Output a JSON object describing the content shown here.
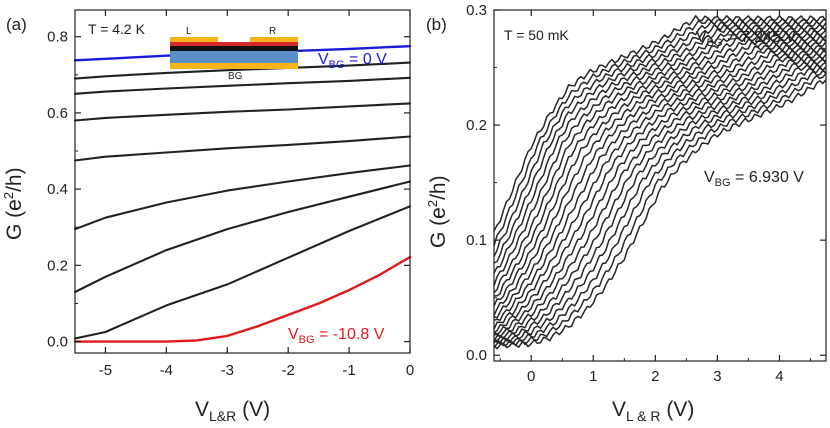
{
  "chart_data": [
    {
      "panel": "(a)",
      "type": "line",
      "xlabel": "V",
      "xlabel_sub": "L&R",
      "xlabel_unit": " (V)",
      "ylabel": "G (e",
      "ylabel_sup": "2",
      "ylabel_unit": "/h)",
      "xlim": [
        -5.5,
        0
      ],
      "ylim": [
        -0.03,
        0.87
      ],
      "xticks": [
        -5,
        -4,
        -3,
        -2,
        -1,
        0
      ],
      "xtick_labels": [
        "-5",
        "-4",
        "-3",
        "-2",
        "-1",
        "0"
      ],
      "yticks": [
        0.0,
        0.2,
        0.4,
        0.6,
        0.8
      ],
      "ytick_labels": [
        "0.0",
        "0.2",
        "0.4",
        "0.6",
        "0.8"
      ],
      "annotation_T": "T = 4.2 K",
      "inset": {
        "left_label": "L",
        "right_label": "R",
        "bottom_label": "BG"
      },
      "label_top": {
        "prefix": "V",
        "sub": "BG",
        "text": " = 0 V",
        "color": "#1a1adc"
      },
      "label_bottom": {
        "prefix": "V",
        "sub": "BG",
        "text": " = -10.8 V",
        "color": "#e11a1a"
      },
      "series": [
        {
          "name": "V_BG = 0 V",
          "color": "#1a1adc",
          "x": [
            -5.5,
            -5.0,
            -4.0,
            -3.0,
            -2.0,
            -1.0,
            0.0
          ],
          "y": [
            0.738,
            0.742,
            0.75,
            0.756,
            0.762,
            0.768,
            0.775
          ]
        },
        {
          "name": "curve 2",
          "color": "#222222",
          "x": [
            -5.5,
            -5.0,
            -4.0,
            -3.0,
            -2.0,
            -1.0,
            0.0
          ],
          "y": [
            0.69,
            0.696,
            0.705,
            0.712,
            0.718,
            0.724,
            0.732
          ]
        },
        {
          "name": "curve 3",
          "color": "#222222",
          "x": [
            -5.5,
            -5.0,
            -4.0,
            -3.0,
            -2.0,
            -1.0,
            0.0
          ],
          "y": [
            0.65,
            0.656,
            0.664,
            0.671,
            0.678,
            0.684,
            0.692
          ]
        },
        {
          "name": "curve 4",
          "color": "#222222",
          "x": [
            -5.5,
            -5.0,
            -4.0,
            -3.0,
            -2.0,
            -1.0,
            0.0
          ],
          "y": [
            0.58,
            0.587,
            0.595,
            0.603,
            0.609,
            0.617,
            0.625
          ]
        },
        {
          "name": "curve 5",
          "color": "#222222",
          "x": [
            -5.5,
            -5.0,
            -4.0,
            -3.0,
            -2.0,
            -1.0,
            0.0
          ],
          "y": [
            0.475,
            0.485,
            0.496,
            0.507,
            0.516,
            0.526,
            0.538
          ]
        },
        {
          "name": "curve 6",
          "color": "#222222",
          "x": [
            -5.5,
            -5.0,
            -4.0,
            -3.0,
            -2.0,
            -1.0,
            0.0
          ],
          "y": [
            0.295,
            0.325,
            0.365,
            0.396,
            0.42,
            0.442,
            0.462
          ]
        },
        {
          "name": "curve 7",
          "color": "#222222",
          "x": [
            -5.5,
            -5.0,
            -4.0,
            -3.0,
            -2.0,
            -1.0,
            0.0
          ],
          "y": [
            0.13,
            0.17,
            0.24,
            0.295,
            0.34,
            0.38,
            0.42
          ]
        },
        {
          "name": "curve 8",
          "color": "#222222",
          "x": [
            -5.5,
            -5.0,
            -4.5,
            -4.0,
            -3.0,
            -2.0,
            -1.0,
            0.0
          ],
          "y": [
            0.008,
            0.025,
            0.06,
            0.095,
            0.15,
            0.22,
            0.29,
            0.355
          ]
        },
        {
          "name": "V_BG = -10.8 V",
          "color": "#e11a1a",
          "x": [
            -5.5,
            -4.0,
            -3.5,
            -3.0,
            -2.5,
            -2.0,
            -1.5,
            -1.0,
            -0.5,
            0.0
          ],
          "y": [
            0.0,
            0.0,
            0.003,
            0.015,
            0.04,
            0.07,
            0.1,
            0.135,
            0.175,
            0.222
          ]
        }
      ]
    },
    {
      "panel": "(b)",
      "type": "line",
      "xlabel": "V",
      "xlabel_sub": "L & R",
      "xlabel_unit": " (V)",
      "ylabel": "G (e",
      "ylabel_sup": "2",
      "ylabel_unit": "/h)",
      "xlim": [
        -0.6,
        4.75
      ],
      "ylim": [
        -0.005,
        0.3
      ],
      "xticks": [
        0,
        1,
        2,
        3,
        4
      ],
      "xtick_labels": [
        "0",
        "1",
        "2",
        "3",
        "4"
      ],
      "yticks": [
        0.0,
        0.1,
        0.2,
        0.3
      ],
      "ytick_labels": [
        "0.0",
        "0.1",
        "0.2",
        "0.3"
      ],
      "annotation_T": "T = 50 mK",
      "label_top": {
        "prefix": "V",
        "sub": "BG",
        "text": " = 7.245 V"
      },
      "label_mid": {
        "prefix": "V",
        "sub": "BG",
        "text": " = 6.930 V"
      },
      "curve_count": 22,
      "curve_offset_start": 0.0,
      "curve_offset_step": 0.1,
      "base_curve": {
        "x": [
          -0.6,
          -0.3,
          0.0,
          0.3,
          0.6,
          0.9,
          1.2,
          1.5,
          1.8,
          2.1,
          2.4,
          2.7,
          3.0,
          3.3,
          3.6,
          3.9,
          4.2,
          4.5,
          4.75
        ],
        "y": [
          0.008,
          0.009,
          0.01,
          0.015,
          0.025,
          0.04,
          0.06,
          0.085,
          0.115,
          0.145,
          0.165,
          0.18,
          0.192,
          0.2,
          0.207,
          0.214,
          0.222,
          0.232,
          0.24
        ]
      },
      "rise_per_curve": 0.0025
    }
  ]
}
